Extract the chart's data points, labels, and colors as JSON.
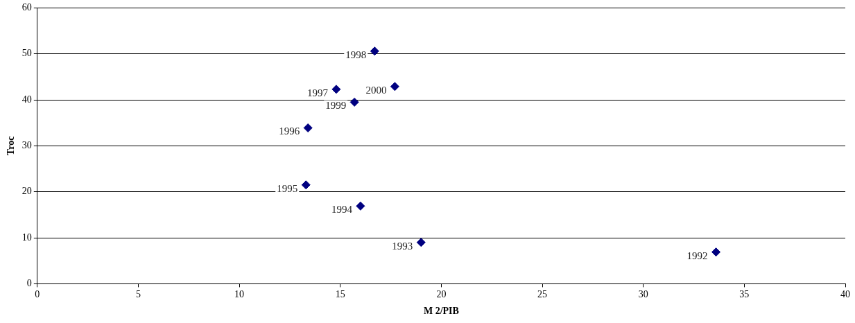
{
  "chart_data": {
    "type": "scatter",
    "xlabel": "M 2/PIB",
    "ylabel": "Troc",
    "x": [
      33.6,
      19.0,
      16.0,
      13.3,
      13.4,
      14.8,
      16.7,
      15.7,
      17.7
    ],
    "series": [
      {
        "color": "#000080",
        "values": [
          6.9,
          9.0,
          16.9,
          21.5,
          33.9,
          42.3,
          50.6,
          39.5,
          42.9
        ]
      }
    ],
    "xlim": [
      0,
      40
    ],
    "xticks": [
      0,
      5,
      10,
      15,
      20,
      25,
      30,
      35,
      40
    ],
    "ylim": [
      0,
      60
    ],
    "yticks": [
      0,
      10,
      20,
      30,
      40,
      50,
      60
    ],
    "grid": "y",
    "legend": false,
    "marker": "diamond",
    "annotations": [
      {
        "text": "1992",
        "x": 33.6,
        "y": 6.9
      },
      {
        "text": "1993",
        "x": 19.0,
        "y": 9.0
      },
      {
        "text": "1994",
        "x": 16.0,
        "y": 16.9
      },
      {
        "text": "1995",
        "x": 13.3,
        "y": 21.5
      },
      {
        "text": "1996",
        "x": 13.4,
        "y": 33.9
      },
      {
        "text": "1997",
        "x": 14.8,
        "y": 42.3
      },
      {
        "text": "1998",
        "x": 16.7,
        "y": 50.6
      },
      {
        "text": "1999",
        "x": 15.7,
        "y": 39.5
      },
      {
        "text": "2000",
        "x": 17.7,
        "y": 42.9
      }
    ]
  }
}
